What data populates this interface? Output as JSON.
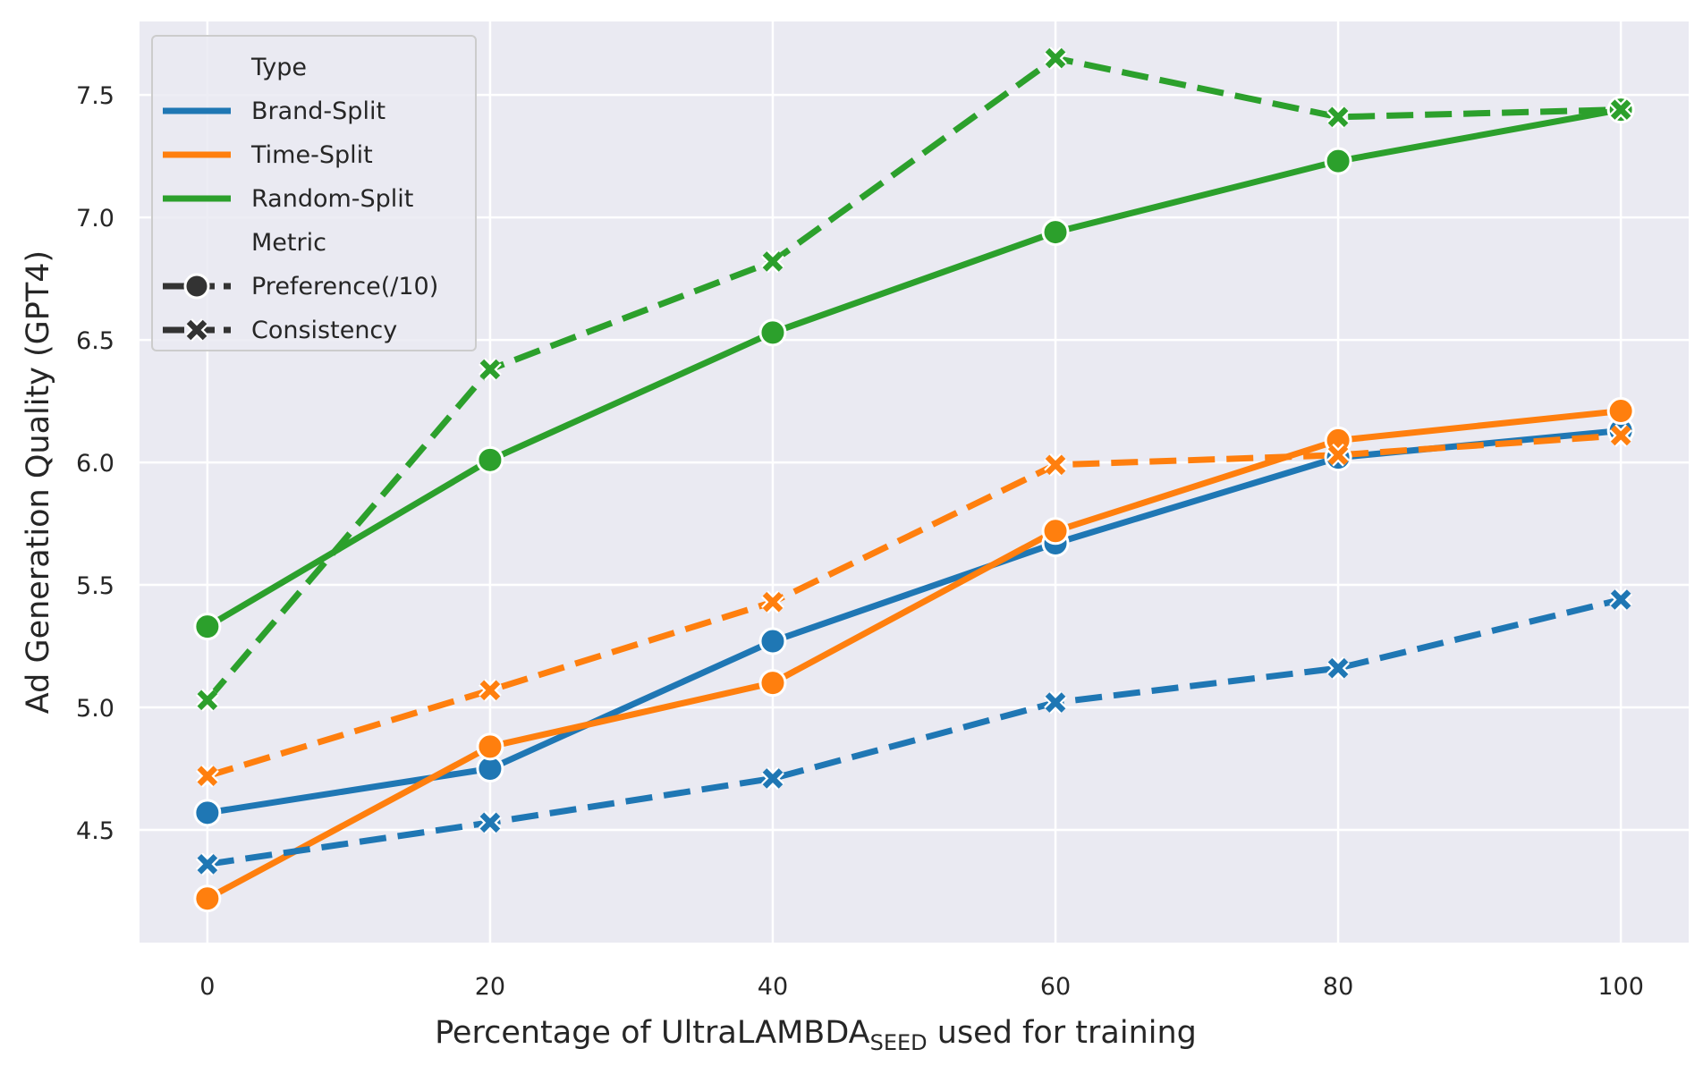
{
  "chart_data": {
    "type": "line",
    "xlabel": "Percentage of UltraLAMBDA",
    "xlabel_subscript": "SEED",
    "xlabel_suffix": " used for training",
    "ylabel": "Ad Generation Quality (GPT4)",
    "x": [
      0,
      20,
      40,
      60,
      80,
      100
    ],
    "xlim": [
      -4.8,
      104.8
    ],
    "ylim": [
      4.04,
      7.8
    ],
    "xticks": [
      0,
      20,
      40,
      60,
      80,
      100
    ],
    "yticks": [
      4.5,
      5.0,
      5.5,
      6.0,
      6.5,
      7.0,
      7.5
    ],
    "ytick_labels": [
      "4.5",
      "5.0",
      "5.5",
      "6.0",
      "6.5",
      "7.0",
      "7.5"
    ],
    "grid": true,
    "legend_position": "top-left",
    "legend": {
      "type_title": "Type",
      "metric_title": "Metric",
      "types": [
        {
          "name": "Brand-Split",
          "color": "#1f77b4"
        },
        {
          "name": "Time-Split",
          "color": "#ff7f0e"
        },
        {
          "name": "Random-Split",
          "color": "#2ca02c"
        }
      ],
      "metrics": [
        {
          "name": "Preference(/10)",
          "marker": "circle",
          "dashed": false
        },
        {
          "name": "Consistency",
          "marker": "x",
          "dashed": true
        }
      ]
    },
    "series": [
      {
        "type": "Brand-Split",
        "metric": "Preference(/10)",
        "color": "#1f77b4",
        "marker": "circle",
        "dashed": false,
        "values": [
          4.57,
          4.75,
          5.27,
          5.67,
          6.02,
          6.13
        ]
      },
      {
        "type": "Time-Split",
        "metric": "Preference(/10)",
        "color": "#ff7f0e",
        "marker": "circle",
        "dashed": false,
        "values": [
          4.22,
          4.84,
          5.1,
          5.72,
          6.09,
          6.21
        ]
      },
      {
        "type": "Random-Split",
        "metric": "Preference(/10)",
        "color": "#2ca02c",
        "marker": "circle",
        "dashed": false,
        "values": [
          5.33,
          6.01,
          6.53,
          6.94,
          7.23,
          7.44
        ]
      },
      {
        "type": "Brand-Split",
        "metric": "Consistency",
        "color": "#1f77b4",
        "marker": "x",
        "dashed": true,
        "values": [
          4.36,
          4.53,
          4.71,
          5.02,
          5.16,
          5.44
        ]
      },
      {
        "type": "Time-Split",
        "metric": "Consistency",
        "color": "#ff7f0e",
        "marker": "x",
        "dashed": true,
        "values": [
          4.72,
          5.07,
          5.43,
          5.99,
          6.03,
          6.11
        ]
      },
      {
        "type": "Random-Split",
        "metric": "Consistency",
        "color": "#2ca02c",
        "marker": "x",
        "dashed": true,
        "values": [
          5.03,
          6.38,
          6.82,
          7.65,
          7.41,
          7.44
        ]
      }
    ],
    "colors": {
      "plot_background": "#eaeaf2",
      "grid": "#ffffff",
      "legend_marker_dark": "#333333"
    }
  }
}
